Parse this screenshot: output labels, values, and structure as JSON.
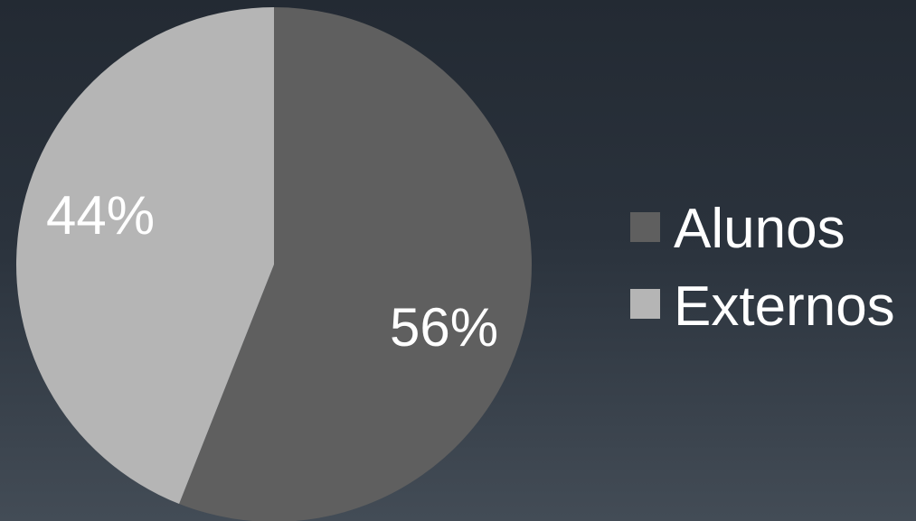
{
  "chart_data": {
    "type": "pie",
    "title": "",
    "categories": [
      "Alunos",
      "Externos"
    ],
    "values": [
      56,
      44
    ],
    "value_labels": [
      "56%",
      "44%"
    ],
    "colors": [
      "#5f5f5f",
      "#b5b5b5"
    ],
    "start_angle_deg": 0,
    "direction": "clockwise",
    "legend": {
      "placement": "right",
      "entries": [
        "Alunos",
        "Externos"
      ]
    }
  }
}
